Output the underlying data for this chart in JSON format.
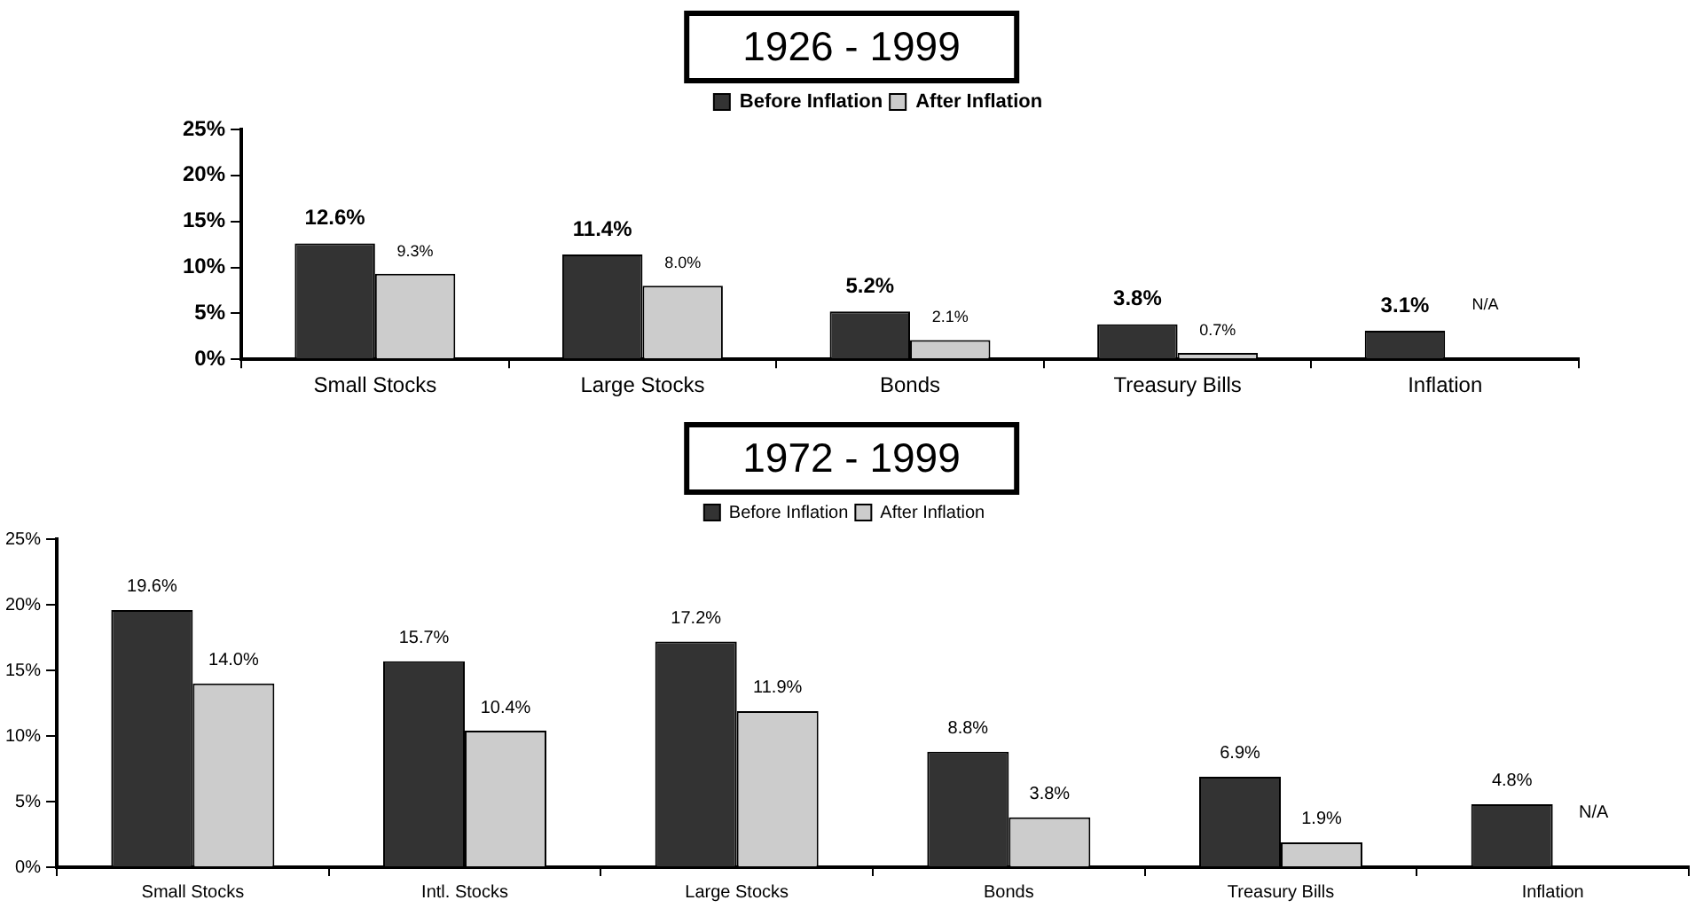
{
  "chart_data": [
    {
      "type": "bar",
      "title": "1926 - 1999",
      "categories": [
        "Small Stocks",
        "Large Stocks",
        "Bonds",
        "Treasury Bills",
        "Inflation"
      ],
      "series": [
        {
          "name": "Before Inflation",
          "color": "#333333",
          "values": [
            12.6,
            11.4,
            5.2,
            3.8,
            3.1
          ],
          "value_labels": [
            "12.6%",
            "11.4%",
            "5.2%",
            "3.8%",
            "3.1%"
          ]
        },
        {
          "name": "After Inflation",
          "color": "#cccccc",
          "values": [
            9.3,
            8.0,
            2.1,
            0.7,
            null
          ],
          "value_labels": [
            "9.3%",
            "8.0%",
            "2.1%",
            "0.7%",
            "N/A"
          ]
        }
      ],
      "ylim": [
        0,
        25
      ],
      "yticks": [
        {
          "value": 0,
          "label": "0%"
        },
        {
          "value": 5,
          "label": "5%"
        },
        {
          "value": 10,
          "label": "10%"
        },
        {
          "value": 15,
          "label": "15%"
        },
        {
          "value": 20,
          "label": "20%"
        },
        {
          "value": 25,
          "label": "25%"
        }
      ],
      "grid": false,
      "legend": "top"
    },
    {
      "type": "bar",
      "title": "1972 - 1999",
      "categories": [
        "Small Stocks",
        "Intl. Stocks",
        "Large Stocks",
        "Bonds",
        "Treasury Bills",
        "Inflation"
      ],
      "series": [
        {
          "name": "Before Inflation",
          "color": "#333333",
          "values": [
            19.6,
            15.7,
            17.2,
            8.8,
            6.9,
            4.8
          ],
          "value_labels": [
            "19.6%",
            "15.7%",
            "17.2%",
            "8.8%",
            "6.9%",
            "4.8%"
          ]
        },
        {
          "name": "After Inflation",
          "color": "#cccccc",
          "values": [
            14.0,
            10.4,
            11.9,
            3.8,
            1.9,
            null
          ],
          "value_labels": [
            "14.0%",
            "10.4%",
            "11.9%",
            "3.8%",
            "1.9%",
            "N/A"
          ]
        }
      ],
      "ylim": [
        0,
        25
      ],
      "yticks": [
        {
          "value": 0,
          "label": "0%"
        },
        {
          "value": 5,
          "label": "5%"
        },
        {
          "value": 10,
          "label": "10%"
        },
        {
          "value": 15,
          "label": "15%"
        },
        {
          "value": 20,
          "label": "20%"
        },
        {
          "value": 25,
          "label": "25%"
        }
      ],
      "grid": false,
      "legend": "top"
    }
  ]
}
